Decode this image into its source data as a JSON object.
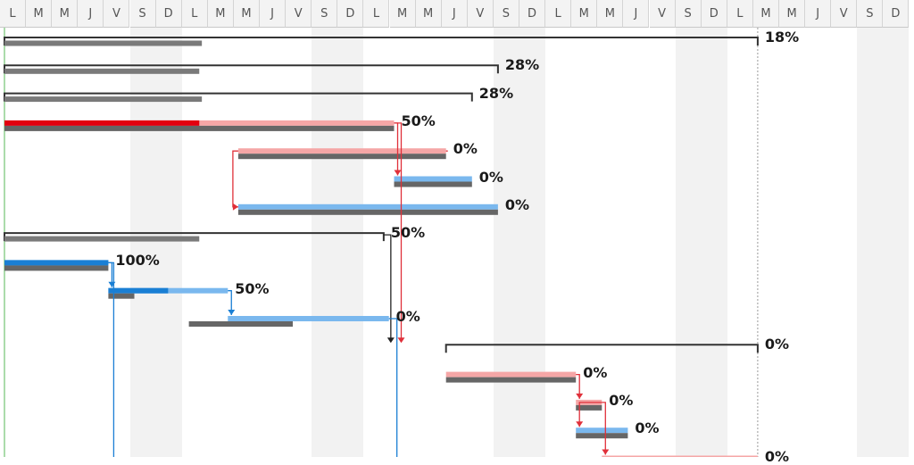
{
  "timeline": {
    "day_letters": [
      "L",
      "M",
      "M",
      "J",
      "V",
      "S",
      "D",
      "L",
      "M",
      "M",
      "J",
      "V",
      "S",
      "D",
      "L",
      "M",
      "M",
      "J",
      "V",
      "S",
      "D",
      "L",
      "M",
      "M",
      "J",
      "V",
      "S",
      "D",
      "L",
      "M",
      "M",
      "J",
      "V",
      "S",
      "D"
    ]
  },
  "tasks": [
    {
      "kind": "summary",
      "percent": "18%",
      "start": 0,
      "end": 29,
      "baseline": [
        0,
        7.6
      ],
      "color": "#333333"
    },
    {
      "kind": "summary",
      "percent": "28%",
      "start": 0,
      "end": 19,
      "baseline": [
        0,
        7.5
      ],
      "color": "#333333"
    },
    {
      "kind": "summary",
      "percent": "28%",
      "start": 0,
      "end": 18,
      "baseline": [
        0,
        7.6
      ],
      "color": "#333333"
    },
    {
      "kind": "task",
      "percent": "50%",
      "start": 0,
      "end": 15,
      "progress": 0.5,
      "baseline": [
        0,
        15
      ],
      "complete_color": "#e3000f",
      "remaining_color": "#f5a6a6"
    },
    {
      "kind": "task",
      "percent": "0%",
      "start": 9,
      "end": 17,
      "progress": 0,
      "baseline": [
        9,
        17
      ],
      "complete_color": "#e3000f",
      "remaining_color": "#f5a6a6"
    },
    {
      "kind": "task",
      "percent": "0%",
      "start": 15,
      "end": 18,
      "progress": 0,
      "baseline": [
        15,
        18
      ],
      "complete_color": "#1a7fd4",
      "remaining_color": "#7ab8ee"
    },
    {
      "kind": "task",
      "percent": "0%",
      "start": 9,
      "end": 19,
      "progress": 0,
      "baseline": [
        9,
        19
      ],
      "complete_color": "#1a7fd4",
      "remaining_color": "#7ab8ee"
    },
    {
      "kind": "summary",
      "percent": "50%",
      "start": 0,
      "end": 14.6,
      "baseline": [
        0,
        7.5
      ],
      "color": "#333333"
    },
    {
      "kind": "task",
      "percent": "100%",
      "start": 0,
      "end": 4,
      "progress": 1,
      "baseline": [
        0,
        4
      ],
      "complete_color": "#1a7fd4",
      "remaining_color": "#7ab8ee"
    },
    {
      "kind": "task",
      "percent": "50%",
      "start": 4,
      "end": 8.6,
      "progress": 0.5,
      "baseline": [
        4,
        5
      ],
      "complete_color": "#1a7fd4",
      "remaining_color": "#7ab8ee"
    },
    {
      "kind": "task",
      "percent": "0%",
      "start": 8.6,
      "end": 14.8,
      "progress": 0,
      "baseline": [
        7.1,
        11.1
      ],
      "complete_color": "#1a7fd4",
      "remaining_color": "#7ab8ee"
    },
    {
      "kind": "summary",
      "percent": "0%",
      "start": 17,
      "end": 29,
      "baseline": null,
      "color": "#333333"
    },
    {
      "kind": "task",
      "percent": "0%",
      "start": 17,
      "end": 22,
      "progress": 0,
      "baseline": [
        17,
        22
      ],
      "complete_color": "#e3000f",
      "remaining_color": "#f5a6a6"
    },
    {
      "kind": "task",
      "percent": "0%",
      "start": 22,
      "end": 23,
      "progress": 0,
      "baseline": [
        22,
        23
      ],
      "complete_color": "#e3000f",
      "remaining_color": "#f5a6a6"
    },
    {
      "kind": "task",
      "percent": "0%",
      "start": 22,
      "end": 24,
      "progress": 0,
      "baseline": [
        22,
        24
      ],
      "complete_color": "#1a7fd4",
      "remaining_color": "#7ab8ee"
    },
    {
      "kind": "task",
      "percent": "0%",
      "start": 23,
      "end": 29,
      "progress": 0,
      "baseline": null,
      "complete_color": "#e3000f",
      "remaining_color": "#f5a6a6"
    }
  ],
  "links": [
    {
      "from": 3,
      "to": 5,
      "color": "#e0303a",
      "mode": "down"
    },
    {
      "from": 4,
      "to": 6,
      "color": "#e0303a",
      "mode": "back"
    },
    {
      "from": 3,
      "to": 11,
      "color": "#e0303a",
      "mode": "longdown"
    },
    {
      "from": 7,
      "to": 11,
      "color": "#222222",
      "mode": "longdown"
    },
    {
      "from": 8,
      "to": 9,
      "color": "#1a7fd4",
      "mode": "down"
    },
    {
      "from": 9,
      "to": 10,
      "color": "#1a7fd4",
      "mode": "down"
    },
    {
      "from": 8,
      "to": null,
      "color": "#1a7fd4",
      "mode": "offscreen"
    },
    {
      "from": 10,
      "to": null,
      "color": "#1a7fd4",
      "mode": "offscreen"
    },
    {
      "from": 12,
      "to": 13,
      "color": "#e0303a",
      "mode": "down"
    },
    {
      "from": 13,
      "to": 14,
      "color": "#e0303a",
      "mode": "down"
    },
    {
      "from": 13,
      "to": 15,
      "color": "#e0303a",
      "mode": "down"
    }
  ],
  "colors": {
    "weekend": "#f2f2f2",
    "baseline": "#666666",
    "today_line": "#8fd18f",
    "deadline": "#999999"
  }
}
